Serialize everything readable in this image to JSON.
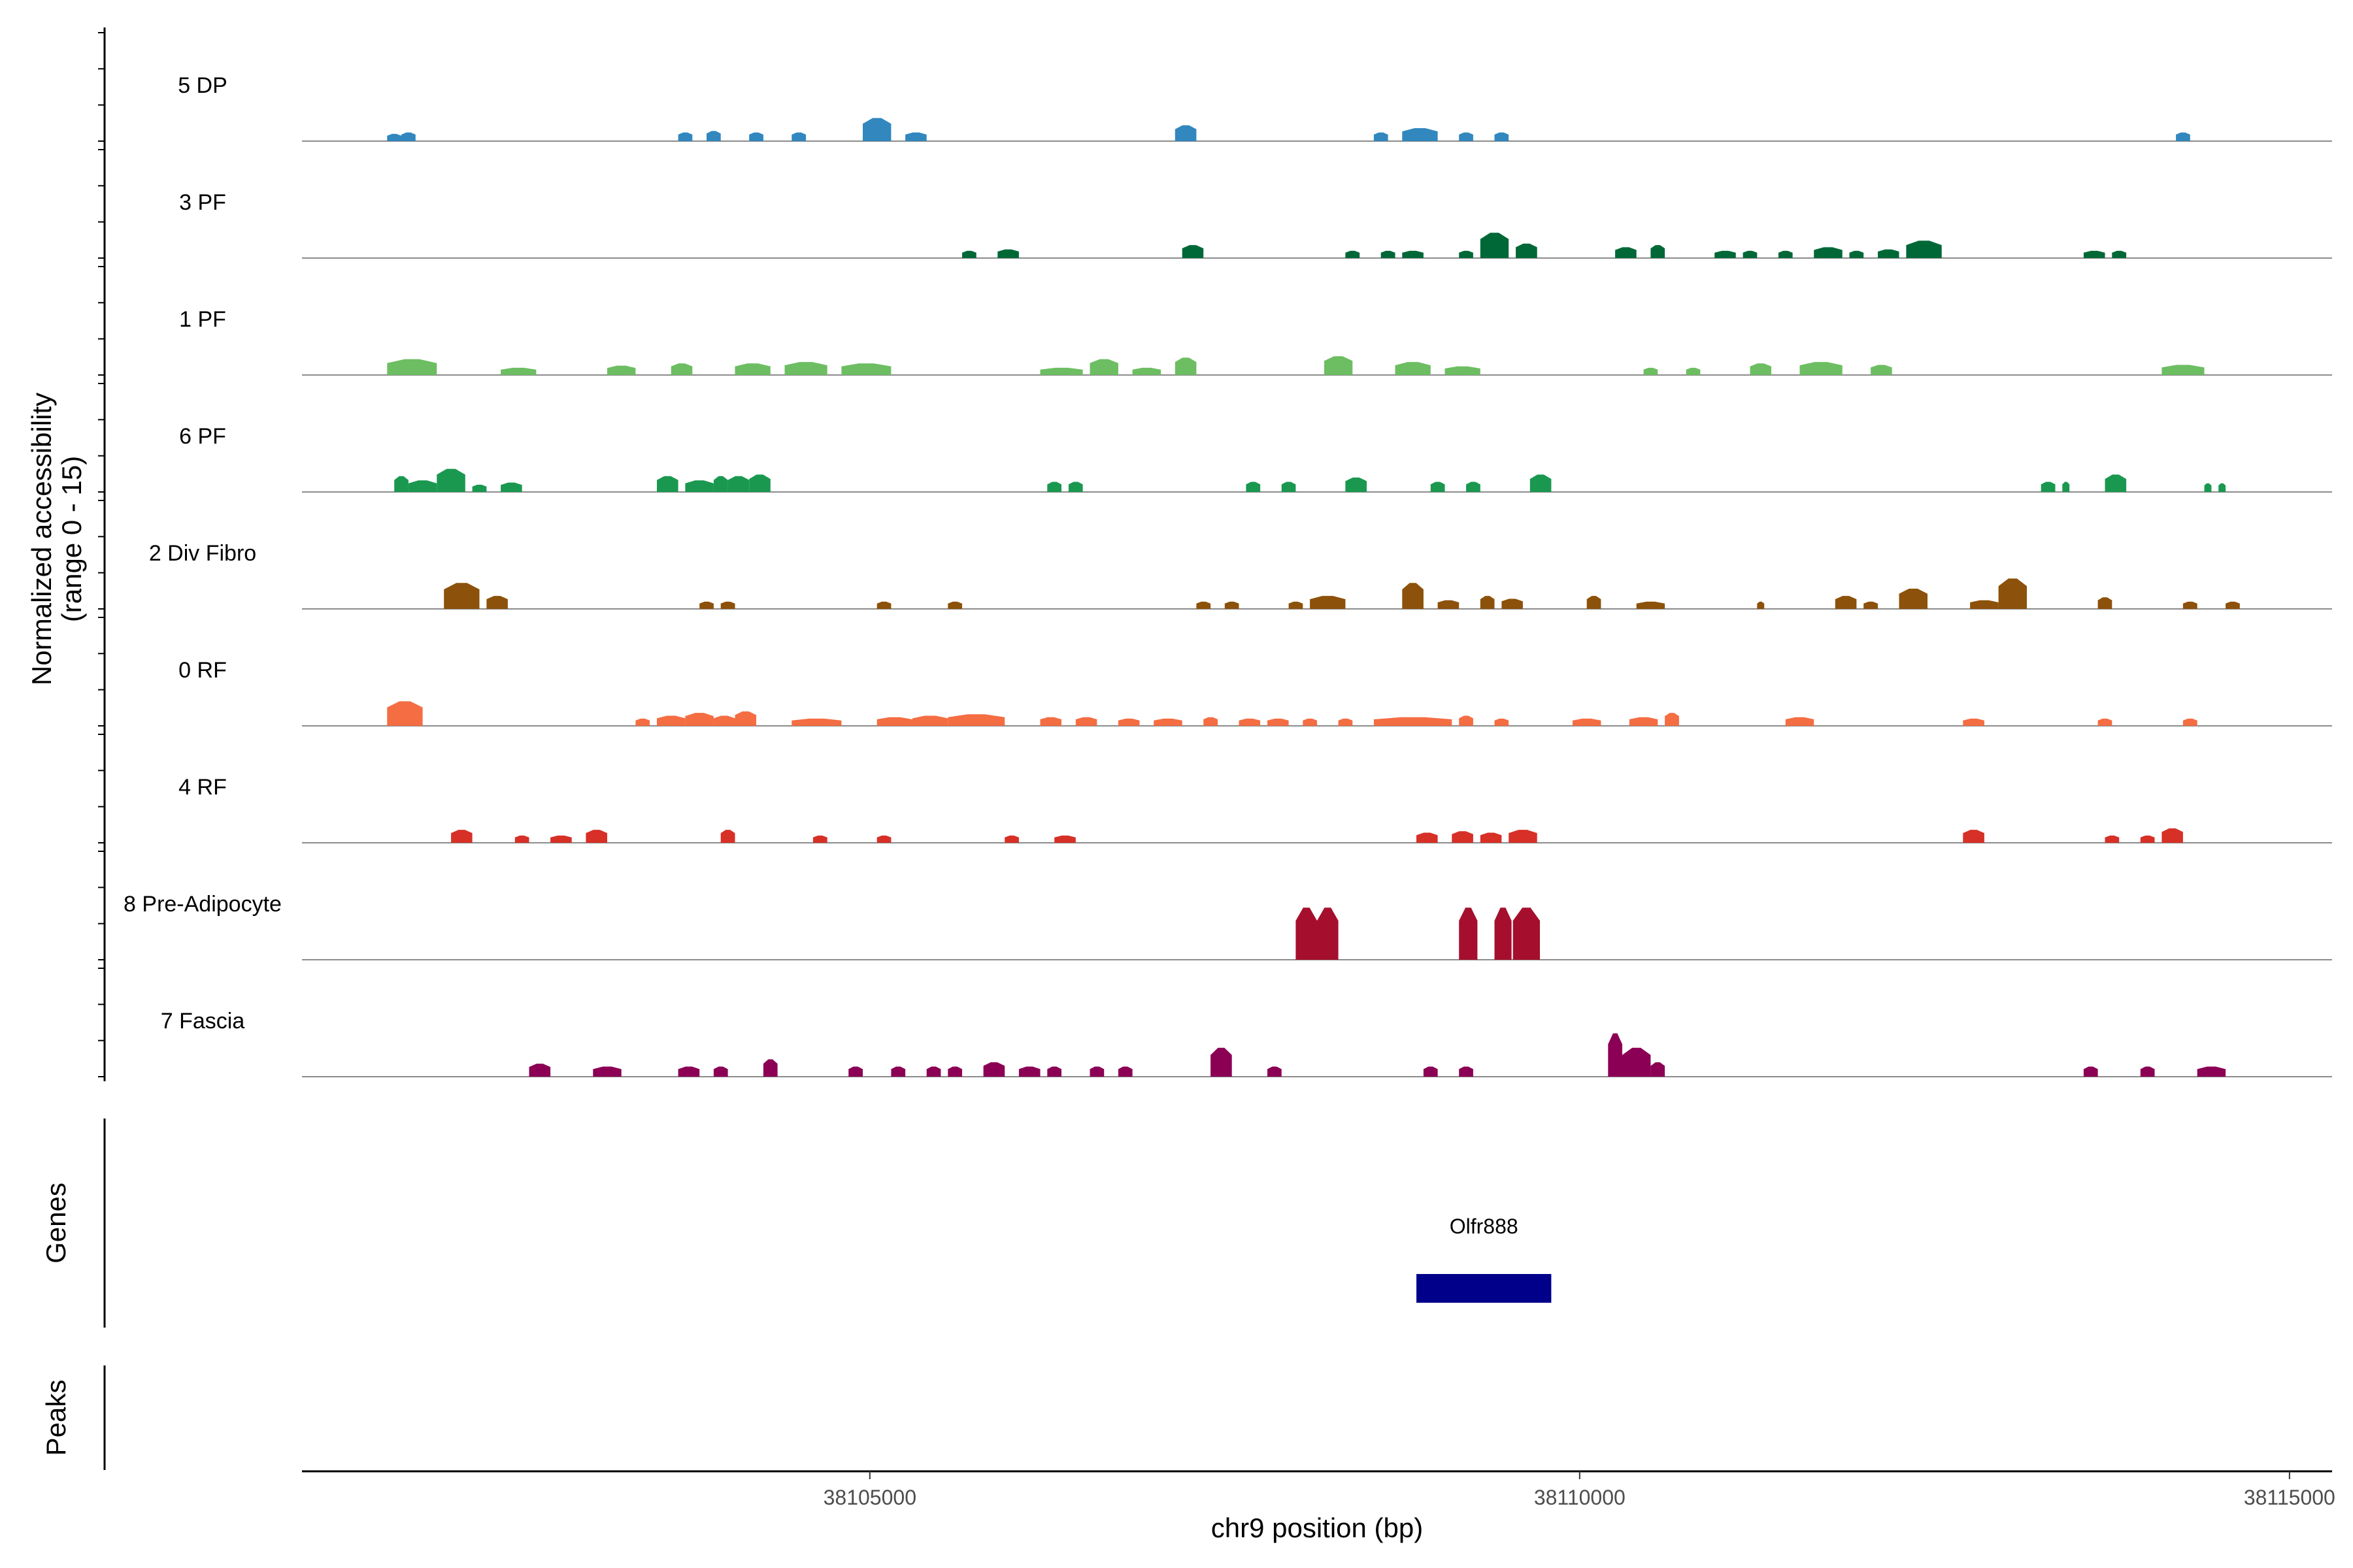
{
  "chart_data": {
    "type": "area",
    "x_axis": {
      "label": "chr9 position (bp)",
      "range": [
        38101000,
        38115300
      ],
      "ticks": [
        38105000,
        38110000,
        38115000
      ],
      "tick_labels": [
        "38105000",
        "38110000",
        "38115000"
      ]
    },
    "y_axis": {
      "label_line1": "Normalized accessibility",
      "label_line2": "(range 0 - 15)",
      "range": [
        0,
        15
      ]
    },
    "grid": false,
    "tracks": [
      {
        "name": "5 DP",
        "color": "#3187BE",
        "peaks": [
          [
            38101600,
            38101700,
            1.0
          ],
          [
            38101700,
            38101800,
            1.2
          ],
          [
            38103650,
            38103750,
            1.2
          ],
          [
            38103850,
            38103950,
            1.4
          ],
          [
            38104150,
            38104250,
            1.2
          ],
          [
            38104450,
            38104550,
            1.2
          ],
          [
            38104950,
            38105150,
            3.2
          ],
          [
            38105250,
            38105400,
            1.2
          ],
          [
            38107150,
            38107300,
            2.2
          ],
          [
            38108550,
            38108650,
            1.2
          ],
          [
            38108750,
            38109000,
            1.8
          ],
          [
            38109150,
            38109250,
            1.2
          ],
          [
            38109400,
            38109500,
            1.2
          ],
          [
            38114200,
            38114300,
            1.2
          ]
        ]
      },
      {
        "name": "3 PF",
        "color": "#006837",
        "peaks": [
          [
            38105650,
            38105750,
            1.0
          ],
          [
            38105900,
            38106050,
            1.2
          ],
          [
            38107200,
            38107350,
            1.8
          ],
          [
            38108350,
            38108450,
            1.0
          ],
          [
            38108600,
            38108700,
            1.0
          ],
          [
            38108750,
            38108900,
            1.0
          ],
          [
            38109150,
            38109250,
            1.0
          ],
          [
            38109300,
            38109500,
            3.5
          ],
          [
            38109550,
            38109700,
            2.0
          ],
          [
            38110250,
            38110400,
            1.5
          ],
          [
            38110500,
            38110600,
            1.8
          ],
          [
            38110950,
            38111100,
            1.0
          ],
          [
            38111150,
            38111250,
            1.0
          ],
          [
            38111400,
            38111500,
            1.0
          ],
          [
            38111650,
            38111850,
            1.5
          ],
          [
            38111900,
            38112000,
            1.0
          ],
          [
            38112100,
            38112250,
            1.2
          ],
          [
            38112300,
            38112550,
            2.4
          ],
          [
            38113550,
            38113700,
            1.0
          ],
          [
            38113750,
            38113850,
            1.0
          ]
        ]
      },
      {
        "name": "1 PF",
        "color": "#6DBE62",
        "peaks": [
          [
            38101600,
            38101950,
            2.2
          ],
          [
            38102400,
            38102650,
            1.0
          ],
          [
            38103150,
            38103350,
            1.3
          ],
          [
            38103600,
            38103750,
            1.6
          ],
          [
            38104050,
            38104300,
            1.6
          ],
          [
            38104400,
            38104700,
            1.8
          ],
          [
            38104800,
            38105150,
            1.6
          ],
          [
            38106200,
            38106500,
            1.0
          ],
          [
            38106550,
            38106750,
            2.2
          ],
          [
            38106850,
            38107050,
            1.0
          ],
          [
            38107150,
            38107300,
            2.4
          ],
          [
            38108200,
            38108400,
            2.6
          ],
          [
            38108700,
            38108950,
            1.8
          ],
          [
            38109050,
            38109300,
            1.2
          ],
          [
            38110450,
            38110550,
            1.0
          ],
          [
            38110750,
            38110850,
            1.0
          ],
          [
            38111200,
            38111350,
            1.6
          ],
          [
            38111550,
            38111850,
            1.8
          ],
          [
            38112050,
            38112200,
            1.4
          ],
          [
            38114100,
            38114400,
            1.4
          ]
        ]
      },
      {
        "name": "6 PF",
        "color": "#1A9850",
        "peaks": [
          [
            38101650,
            38101750,
            2.2
          ],
          [
            38101750,
            38101950,
            1.6
          ],
          [
            38101950,
            38102150,
            3.2
          ],
          [
            38102200,
            38102300,
            1.0
          ],
          [
            38102400,
            38102550,
            1.3
          ],
          [
            38103500,
            38103650,
            2.2
          ],
          [
            38103700,
            38103900,
            1.6
          ],
          [
            38103900,
            38104000,
            2.2
          ],
          [
            38104000,
            38104150,
            2.2
          ],
          [
            38104150,
            38104300,
            2.4
          ],
          [
            38106250,
            38106350,
            1.4
          ],
          [
            38106400,
            38106500,
            1.4
          ],
          [
            38107650,
            38107750,
            1.4
          ],
          [
            38107900,
            38108000,
            1.4
          ],
          [
            38108350,
            38108500,
            2.0
          ],
          [
            38108950,
            38109050,
            1.4
          ],
          [
            38109200,
            38109300,
            1.4
          ],
          [
            38109650,
            38109800,
            2.4
          ],
          [
            38113250,
            38113350,
            1.4
          ],
          [
            38113400,
            38113450,
            1.4
          ],
          [
            38113700,
            38113850,
            2.4
          ],
          [
            38114400,
            38114450,
            1.2
          ],
          [
            38114500,
            38114550,
            1.2
          ]
        ]
      },
      {
        "name": "2 Div Fibro",
        "color": "#8C510A",
        "peaks": [
          [
            38102000,
            38102250,
            3.6
          ],
          [
            38102300,
            38102450,
            1.8
          ],
          [
            38103800,
            38103900,
            1.0
          ],
          [
            38103950,
            38104050,
            1.0
          ],
          [
            38105050,
            38105150,
            1.0
          ],
          [
            38105550,
            38105650,
            1.0
          ],
          [
            38107300,
            38107400,
            1.0
          ],
          [
            38107500,
            38107600,
            1.0
          ],
          [
            38107950,
            38108050,
            1.0
          ],
          [
            38108100,
            38108350,
            1.8
          ],
          [
            38108750,
            38108900,
            3.6
          ],
          [
            38109000,
            38109150,
            1.2
          ],
          [
            38109300,
            38109400,
            1.8
          ],
          [
            38109450,
            38109600,
            1.4
          ],
          [
            38110050,
            38110150,
            1.8
          ],
          [
            38110400,
            38110600,
            1.0
          ],
          [
            38111250,
            38111300,
            1.0
          ],
          [
            38111800,
            38111950,
            1.8
          ],
          [
            38112000,
            38112100,
            1.0
          ],
          [
            38112250,
            38112450,
            2.8
          ],
          [
            38112750,
            38112950,
            1.2
          ],
          [
            38112950,
            38113150,
            4.2
          ],
          [
            38113650,
            38113750,
            1.6
          ],
          [
            38114250,
            38114350,
            1.0
          ],
          [
            38114550,
            38114650,
            1.0
          ]
        ]
      },
      {
        "name": "0 RF",
        "color": "#F46D43",
        "peaks": [
          [
            38101600,
            38101850,
            3.4
          ],
          [
            38103350,
            38103450,
            1.0
          ],
          [
            38103500,
            38103700,
            1.4
          ],
          [
            38103700,
            38103900,
            1.8
          ],
          [
            38103900,
            38104050,
            1.4
          ],
          [
            38104050,
            38104200,
            2.0
          ],
          [
            38104450,
            38104800,
            1.0
          ],
          [
            38105050,
            38105300,
            1.2
          ],
          [
            38105300,
            38105550,
            1.4
          ],
          [
            38105550,
            38105950,
            1.6
          ],
          [
            38106200,
            38106350,
            1.2
          ],
          [
            38106450,
            38106600,
            1.2
          ],
          [
            38106750,
            38106900,
            1.0
          ],
          [
            38107000,
            38107200,
            1.0
          ],
          [
            38107350,
            38107450,
            1.2
          ],
          [
            38107600,
            38107750,
            1.0
          ],
          [
            38107800,
            38107950,
            1.0
          ],
          [
            38108050,
            38108150,
            1.0
          ],
          [
            38108300,
            38108400,
            1.0
          ],
          [
            38108550,
            38109100,
            1.2
          ],
          [
            38109150,
            38109250,
            1.4
          ],
          [
            38109400,
            38109500,
            1.0
          ],
          [
            38109950,
            38110150,
            1.0
          ],
          [
            38110350,
            38110550,
            1.2
          ],
          [
            38110600,
            38110700,
            1.8
          ],
          [
            38111450,
            38111650,
            1.2
          ],
          [
            38112700,
            38112850,
            1.0
          ],
          [
            38113650,
            38113750,
            1.0
          ],
          [
            38114250,
            38114350,
            1.0
          ]
        ]
      },
      {
        "name": "4 RF",
        "color": "#D73027",
        "peaks": [
          [
            38102050,
            38102200,
            1.8
          ],
          [
            38102500,
            38102600,
            1.0
          ],
          [
            38102750,
            38102900,
            1.0
          ],
          [
            38103000,
            38103150,
            1.8
          ],
          [
            38103950,
            38104050,
            1.8
          ],
          [
            38104600,
            38104700,
            1.0
          ],
          [
            38105050,
            38105150,
            1.0
          ],
          [
            38105950,
            38106050,
            1.0
          ],
          [
            38106300,
            38106450,
            1.0
          ],
          [
            38108850,
            38109000,
            1.4
          ],
          [
            38109100,
            38109250,
            1.6
          ],
          [
            38109300,
            38109450,
            1.4
          ],
          [
            38109500,
            38109700,
            1.8
          ],
          [
            38112700,
            38112850,
            1.8
          ],
          [
            38113700,
            38113800,
            1.0
          ],
          [
            38113950,
            38114050,
            1.0
          ],
          [
            38114100,
            38114250,
            2.0
          ]
        ]
      },
      {
        "name": "8 Pre-Adipocyte",
        "color": "#A50F2D",
        "peaks": [
          [
            38108000,
            38108150,
            7.2
          ],
          [
            38108150,
            38108300,
            7.2
          ],
          [
            38109150,
            38109280,
            7.2
          ],
          [
            38109400,
            38109520,
            7.2
          ],
          [
            38109530,
            38109720,
            7.2
          ]
        ]
      },
      {
        "name": "7 Fascia",
        "color": "#8B0055",
        "peaks": [
          [
            38102600,
            38102750,
            1.8
          ],
          [
            38103050,
            38103250,
            1.4
          ],
          [
            38103650,
            38103800,
            1.4
          ],
          [
            38103900,
            38104000,
            1.4
          ],
          [
            38104250,
            38104350,
            2.4
          ],
          [
            38104850,
            38104950,
            1.4
          ],
          [
            38105150,
            38105250,
            1.4
          ],
          [
            38105400,
            38105500,
            1.4
          ],
          [
            38105550,
            38105650,
            1.4
          ],
          [
            38105800,
            38105950,
            2.0
          ],
          [
            38106050,
            38106200,
            1.4
          ],
          [
            38106250,
            38106350,
            1.4
          ],
          [
            38106550,
            38106650,
            1.4
          ],
          [
            38106750,
            38106850,
            1.4
          ],
          [
            38107400,
            38107550,
            4.0
          ],
          [
            38107800,
            38107900,
            1.4
          ],
          [
            38108900,
            38109000,
            1.4
          ],
          [
            38109150,
            38109250,
            1.4
          ],
          [
            38110200,
            38110300,
            6.0
          ],
          [
            38110300,
            38110500,
            4.0
          ],
          [
            38110500,
            38110600,
            2.0
          ],
          [
            38113550,
            38113650,
            1.4
          ],
          [
            38113950,
            38114050,
            1.4
          ],
          [
            38114350,
            38114550,
            1.4
          ]
        ]
      }
    ],
    "genes_track": {
      "label": "Genes",
      "genes": [
        {
          "name": "Olfr888",
          "start": 38108850,
          "end": 38109800,
          "color": "#00008B"
        }
      ]
    },
    "peaks_track": {
      "label": "Peaks"
    }
  }
}
